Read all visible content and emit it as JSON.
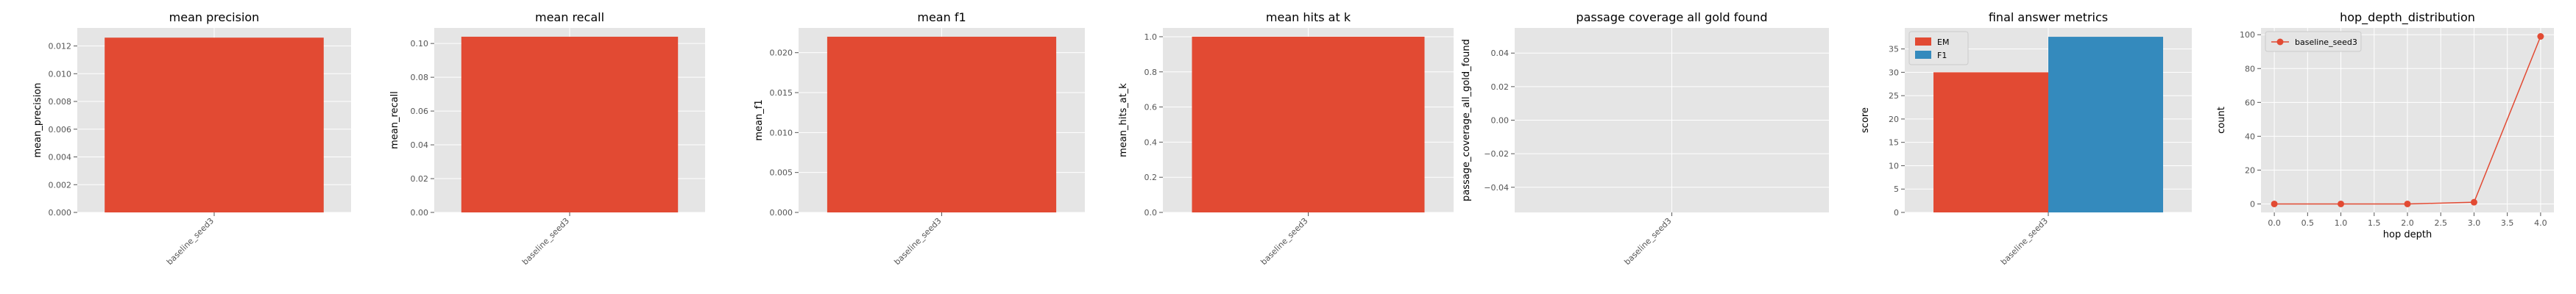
{
  "figure": {
    "panels": [
      {
        "title": "mean precision",
        "ylabel": "mean_precision",
        "xlabel": "",
        "yticks": [
          "0.000",
          "0.002",
          "0.004",
          "0.006",
          "0.008",
          "0.010",
          "0.012"
        ],
        "xticks": [
          "baseline_seed3"
        ]
      },
      {
        "title": "mean recall",
        "ylabel": "mean_recall",
        "xlabel": "",
        "yticks": [
          "0.00",
          "0.02",
          "0.04",
          "0.06",
          "0.08",
          "0.10"
        ],
        "xticks": [
          "baseline_seed3"
        ]
      },
      {
        "title": "mean f1",
        "ylabel": "mean_f1",
        "xlabel": "",
        "yticks": [
          "0.000",
          "0.005",
          "0.010",
          "0.015",
          "0.020"
        ],
        "xticks": [
          "baseline_seed3"
        ]
      },
      {
        "title": "mean hits at k",
        "ylabel": "mean_hits_at_k",
        "xlabel": "",
        "yticks": [
          "0.0",
          "0.2",
          "0.4",
          "0.6",
          "0.8",
          "1.0"
        ],
        "xticks": [
          "baseline_seed3"
        ]
      },
      {
        "title": "passage coverage all gold found",
        "ylabel": "passage_coverage_all_gold_found",
        "xlabel": "",
        "yticks": [
          "−0.04",
          "−0.02",
          "0.00",
          "0.02",
          "0.04"
        ],
        "xticks": [
          "baseline_seed3"
        ]
      },
      {
        "title": "final answer metrics",
        "ylabel": "score",
        "xlabel": "",
        "yticks": [
          "0",
          "5",
          "10",
          "15",
          "20",
          "25",
          "30",
          "35"
        ],
        "xticks": [
          "baseline_seed3"
        ],
        "legend": [
          "EM",
          "F1"
        ]
      },
      {
        "title": "hop_depth_distribution",
        "ylabel": "count",
        "xlabel": "hop depth",
        "yticks": [
          "0",
          "20",
          "40",
          "60",
          "80",
          "100"
        ],
        "xticks": [
          "0.0",
          "0.5",
          "1.0",
          "1.5",
          "2.0",
          "2.5",
          "3.0",
          "3.5",
          "4.0"
        ],
        "legend": [
          "baseline_seed3"
        ]
      }
    ]
  },
  "colors": {
    "bar_red": "#E24A33",
    "bar_blue": "#348ABD",
    "axes_bg": "#E5E5E5",
    "grid": "#FFFFFF",
    "text": "#000000",
    "tick_text": "#555555"
  },
  "chart_data": [
    {
      "type": "bar",
      "title": "mean precision",
      "xlabel": "",
      "ylabel": "mean_precision",
      "categories": [
        "baseline_seed3"
      ],
      "values": [
        0.0126
      ],
      "ylim": [
        0,
        0.0133
      ],
      "grid": true
    },
    {
      "type": "bar",
      "title": "mean recall",
      "xlabel": "",
      "ylabel": "mean_recall",
      "categories": [
        "baseline_seed3"
      ],
      "values": [
        0.104
      ],
      "ylim": [
        0,
        0.1092
      ],
      "grid": true
    },
    {
      "type": "bar",
      "title": "mean f1",
      "xlabel": "",
      "ylabel": "mean_f1",
      "categories": [
        "baseline_seed3"
      ],
      "values": [
        0.022
      ],
      "ylim": [
        0,
        0.0231
      ],
      "grid": true
    },
    {
      "type": "bar",
      "title": "mean hits at k",
      "xlabel": "",
      "ylabel": "mean_hits_at_k",
      "categories": [
        "baseline_seed3"
      ],
      "values": [
        1.0
      ],
      "ylim": [
        0,
        1.05
      ],
      "grid": true
    },
    {
      "type": "bar",
      "title": "passage coverage all gold found",
      "xlabel": "",
      "ylabel": "passage_coverage_all_gold_found",
      "categories": [
        "baseline_seed3"
      ],
      "values": [
        0
      ],
      "ylim": [
        -0.055,
        0.055
      ],
      "grid": true
    },
    {
      "type": "bar",
      "title": "final answer metrics",
      "xlabel": "",
      "ylabel": "score",
      "categories": [
        "baseline_seed3"
      ],
      "series": [
        {
          "name": "EM",
          "values": [
            30
          ]
        },
        {
          "name": "F1",
          "values": [
            37.6
          ]
        }
      ],
      "ylim": [
        0,
        39.5
      ],
      "legend": "upper-left",
      "grid": true
    },
    {
      "type": "line",
      "title": "hop_depth_distribution",
      "xlabel": "hop depth",
      "ylabel": "count",
      "series": [
        {
          "name": "baseline_seed3",
          "x": [
            0,
            1,
            2,
            3,
            4
          ],
          "y": [
            0,
            0,
            0,
            1,
            99
          ]
        }
      ],
      "xlim": [
        -0.2,
        4.2
      ],
      "ylim": [
        -5,
        104
      ],
      "legend": "upper-left",
      "grid": true
    }
  ]
}
